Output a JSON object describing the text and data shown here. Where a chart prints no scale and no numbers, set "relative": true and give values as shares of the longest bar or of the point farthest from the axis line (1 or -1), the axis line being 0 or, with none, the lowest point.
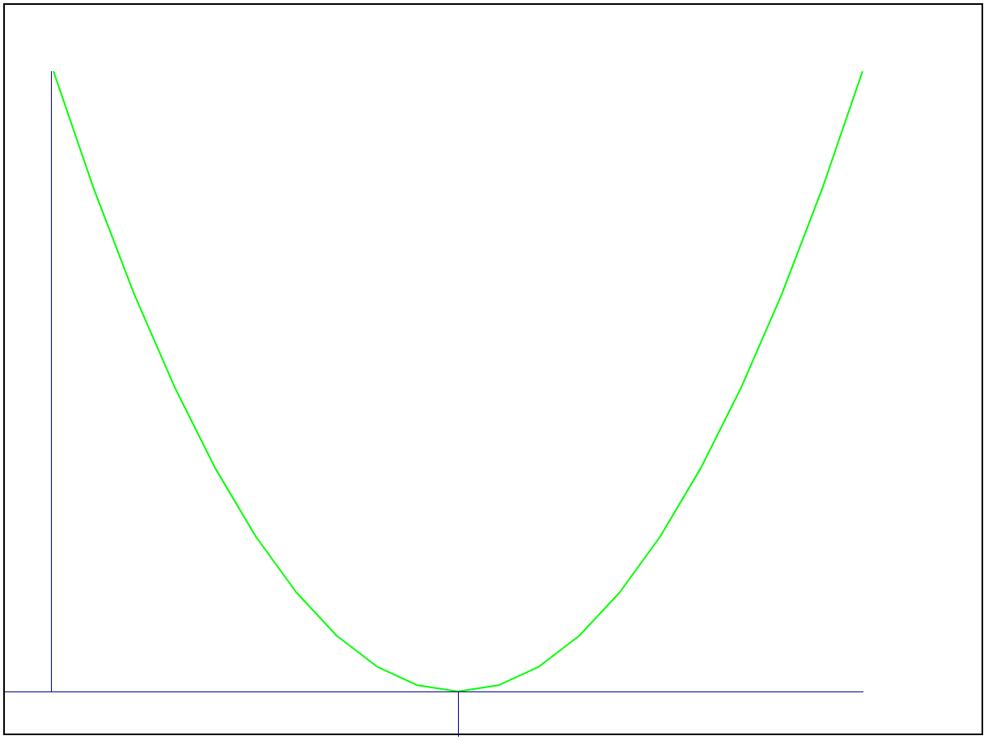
{
  "chart_data": {
    "type": "line",
    "relative": true,
    "tick_labels": false,
    "legend": false,
    "marker": "none",
    "line_style": "solid",
    "categories": [
      null,
      null,
      null,
      null,
      null,
      null,
      null,
      null,
      null,
      null,
      null,
      null,
      null,
      null,
      null,
      null,
      null,
      null,
      null,
      null,
      null
    ],
    "series": [
      {
        "color": "#00ff00",
        "values": [
          1,
          0.81,
          0.64,
          0.49,
          0.36,
          0.25,
          0.16,
          0.09,
          0.04,
          0.01,
          0,
          0.01,
          0.04,
          0.09,
          0.16,
          0.25,
          0.36,
          0.49,
          0.64,
          0.81,
          1
        ]
      }
    ]
  }
}
